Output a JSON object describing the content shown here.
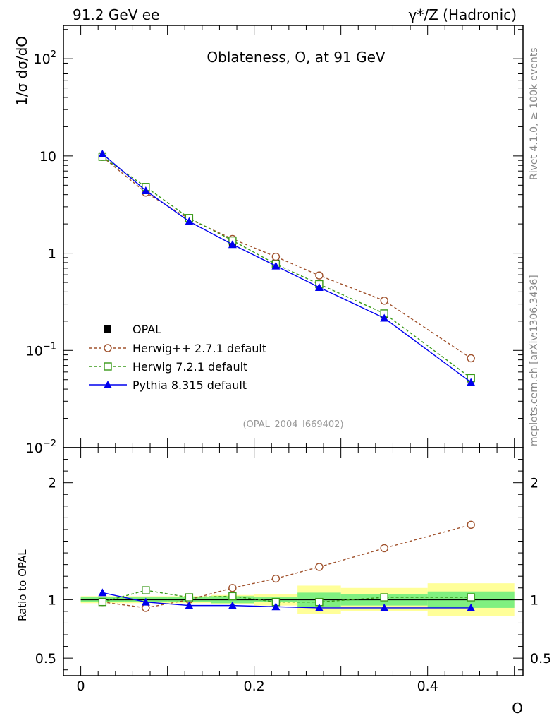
{
  "header": {
    "left_label": "91.2 GeV ee",
    "right_label": "γ*/Z (Hadronic)"
  },
  "side_labels": {
    "rivet": "Rivet 4.1.0, ≥ 100k events",
    "mcplots": "mcplots.cern.ch [arXiv:1306.3436]"
  },
  "colors": {
    "opal": "#000000",
    "herwigpp": "#a0522d",
    "herwig7": "#3a9a1a",
    "pythia": "#0000ee",
    "band_inner": "#80f080",
    "band_outer": "#ffff99"
  },
  "chart_data": [
    {
      "type": "line",
      "title": "Oblateness, O, at 91 GeV",
      "ylabel": "1/σ  dσ/dO",
      "xlim": [
        -0.02,
        0.51
      ],
      "ylim": [
        0.01,
        220
      ],
      "yscale": "log",
      "yticks": [
        {
          "value": 100,
          "base": "10",
          "exp": "2"
        },
        {
          "value": 10,
          "base": "10",
          "exp": ""
        },
        {
          "value": 1,
          "base": "1",
          "exp": ""
        },
        {
          "value": 0.1,
          "base": "10",
          "exp": "−1"
        },
        {
          "value": 0.01,
          "base": "10",
          "exp": "−2"
        }
      ],
      "watermark": "(OPAL_2004_I669402)",
      "legend_position": "lower-left",
      "x": [
        0.025,
        0.075,
        0.125,
        0.175,
        0.225,
        0.275,
        0.35,
        0.45
      ],
      "bin_edges": [
        0.0,
        0.05,
        0.1,
        0.15,
        0.2,
        0.25,
        0.3,
        0.4,
        0.5
      ],
      "series": [
        {
          "key": "opal",
          "name": "OPAL",
          "marker": "filled-square",
          "line": "none",
          "values": [
            10.0,
            4.5,
            2.25,
            1.3,
            0.79,
            0.48,
            0.235,
            0.051
          ]
        },
        {
          "key": "herwigpp",
          "name": "Herwig++ 2.7.1 default",
          "marker": "open-circle",
          "line": "dashed",
          "values": [
            9.8,
            4.2,
            2.25,
            1.4,
            0.92,
            0.59,
            0.325,
            0.083
          ]
        },
        {
          "key": "herwig7",
          "name": "Herwig 7.2.1 default",
          "marker": "open-square",
          "line": "dashed",
          "values": [
            9.8,
            4.8,
            2.3,
            1.35,
            0.77,
            0.48,
            0.24,
            0.052
          ]
        },
        {
          "key": "pythia",
          "name": "Pythia 8.315 default",
          "marker": "filled-triangle",
          "line": "solid",
          "values": [
            10.5,
            4.4,
            2.12,
            1.23,
            0.74,
            0.445,
            0.215,
            0.047
          ]
        }
      ]
    },
    {
      "type": "line",
      "ylabel": "Ratio to OPAL",
      "xlabel": "O",
      "xlim": [
        -0.02,
        0.51
      ],
      "ylim": [
        0.35,
        2.3
      ],
      "reference_line": 1,
      "yticks": [
        {
          "value": 2,
          "label": "2"
        },
        {
          "value": 1,
          "label": "1"
        },
        {
          "value": 0.5,
          "label": "0.5"
        }
      ],
      "xticks": [
        {
          "value": 0,
          "label": "0"
        },
        {
          "value": 0.2,
          "label": "0.2"
        },
        {
          "value": 0.4,
          "label": "0.4"
        }
      ],
      "x": [
        0.025,
        0.075,
        0.125,
        0.175,
        0.225,
        0.275,
        0.35,
        0.45
      ],
      "bin_edges": [
        0.0,
        0.05,
        0.1,
        0.15,
        0.2,
        0.25,
        0.3,
        0.4,
        0.5
      ],
      "band_inner_halfwidth": [
        0.02,
        0.02,
        0.02,
        0.03,
        0.02,
        0.06,
        0.05,
        0.07
      ],
      "band_outer_halfwidth": [
        0.03,
        0.03,
        0.03,
        0.04,
        0.05,
        0.12,
        0.1,
        0.14
      ],
      "series": [
        {
          "key": "herwigpp",
          "name": "Herwig++ 2.7.1 default",
          "values": [
            0.98,
            0.93,
            1.0,
            1.1,
            1.18,
            1.28,
            1.44,
            1.64
          ]
        },
        {
          "key": "herwig7",
          "name": "Herwig 7.2.1 default",
          "values": [
            0.98,
            1.08,
            1.02,
            1.03,
            0.98,
            0.98,
            1.02,
            1.02
          ]
        },
        {
          "key": "pythia",
          "name": "Pythia 8.315 default",
          "values": [
            1.06,
            0.98,
            0.95,
            0.95,
            0.94,
            0.93,
            0.93,
            0.93
          ]
        }
      ]
    }
  ]
}
